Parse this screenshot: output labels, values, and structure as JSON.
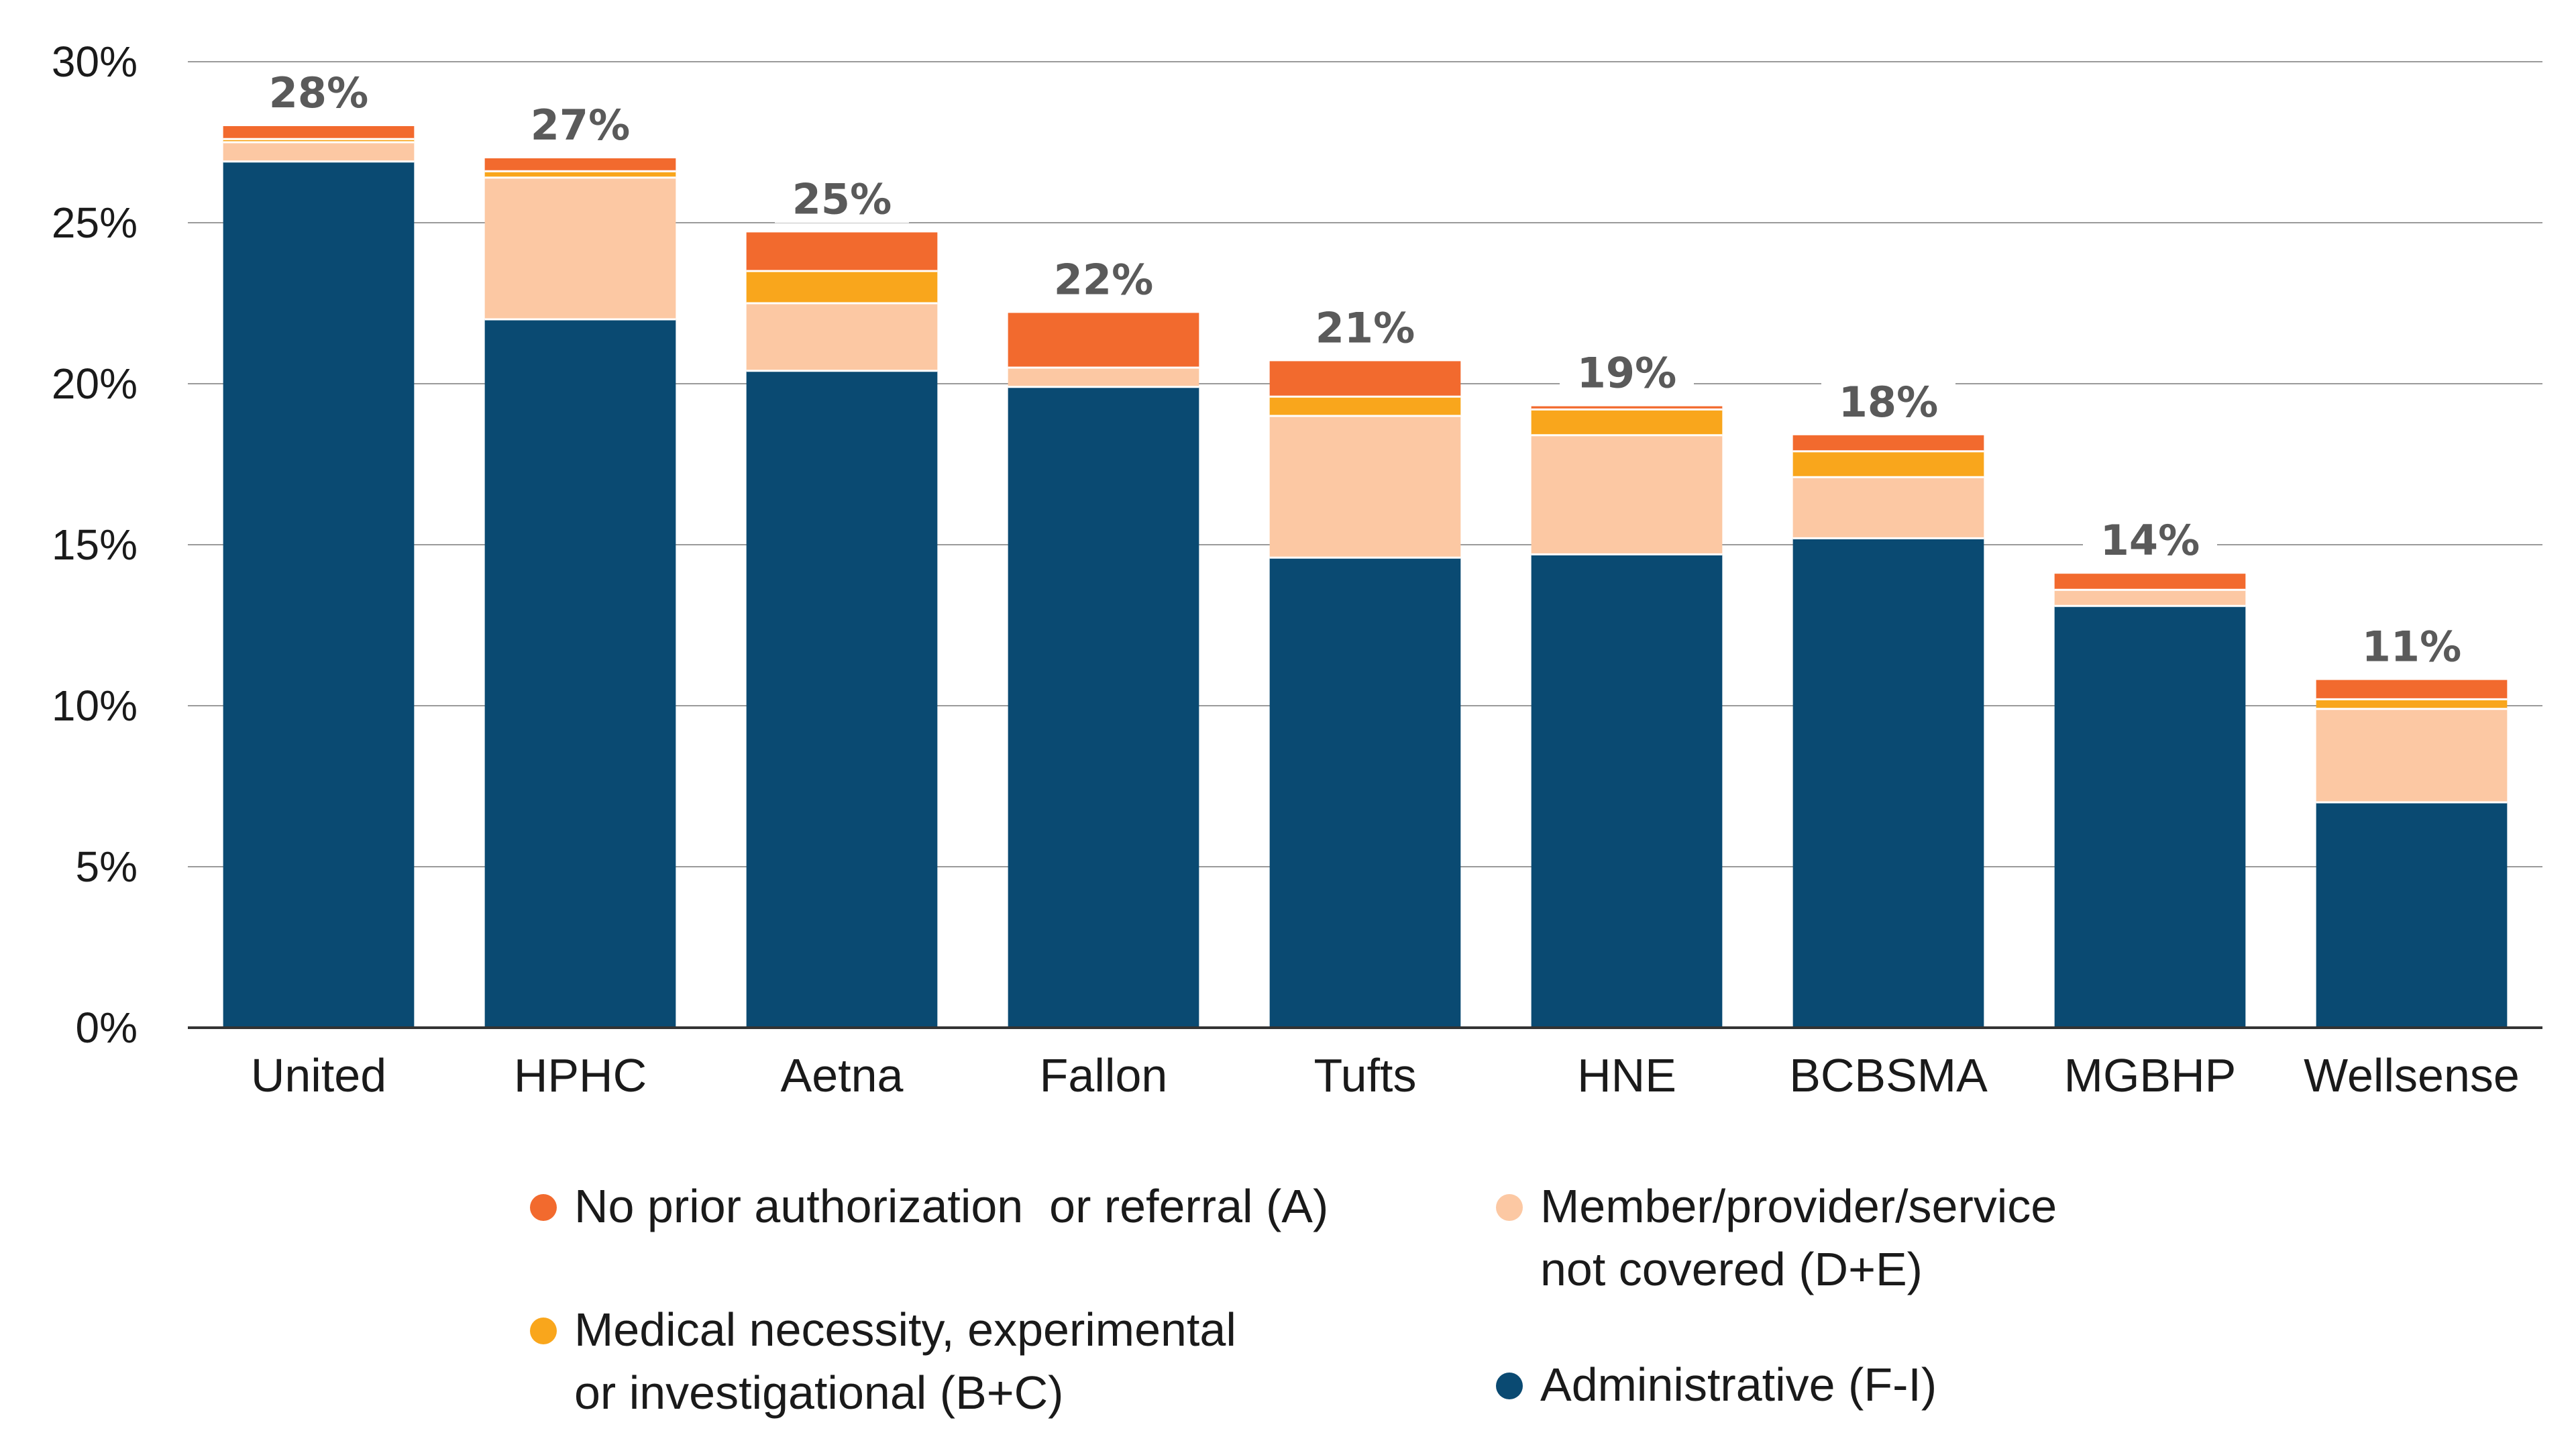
{
  "chart_data": {
    "type": "bar",
    "stacked": true,
    "title": "",
    "xlabel": "",
    "ylabel": "",
    "ylim": [
      0,
      30
    ],
    "y_ticks": [
      "0%",
      "5%",
      "10%",
      "15%",
      "20%",
      "25%",
      "30%"
    ],
    "grid": true,
    "legend_position": "bottom",
    "categories": [
      "United",
      "HPHC",
      "Aetna",
      "Fallon",
      "Tufts",
      "HNE",
      "BCBSMA",
      "MGBHP",
      "Wellsense"
    ],
    "totals_labels": [
      "28%",
      "27%",
      "25%",
      "22%",
      "21%",
      "19%",
      "18%",
      "14%",
      "11%"
    ],
    "series": [
      {
        "name": "Administrative (F-I)",
        "color": "#0a4a72",
        "values": [
          26.9,
          22.0,
          20.4,
          19.9,
          14.6,
          14.7,
          15.2,
          13.1,
          7.0
        ]
      },
      {
        "name": "Member/provider/service not covered (D+E)",
        "color": "#fcc8a3",
        "values": [
          0.6,
          4.4,
          2.1,
          0.6,
          4.4,
          3.7,
          1.9,
          0.5,
          2.9
        ]
      },
      {
        "name": "Medical necessity, experimental or investigational (B+C)",
        "color": "#f9a61c",
        "values": [
          0.1,
          0.2,
          1.0,
          0.0,
          0.6,
          0.8,
          0.8,
          0.0,
          0.3
        ]
      },
      {
        "name": "No prior authorization  or referral (A)",
        "color": "#f26a2e",
        "values": [
          0.4,
          0.4,
          1.2,
          1.7,
          1.1,
          0.1,
          0.5,
          0.5,
          0.6
        ]
      }
    ]
  },
  "legend": {
    "items": [
      {
        "lines": [
          "No prior authorization  or referral (A)"
        ],
        "color": "#f26a2e",
        "icon": "dot"
      },
      {
        "lines": [
          "Member/provider/service",
          "not covered (D+E)"
        ],
        "color": "#fcc8a3",
        "icon": "dot"
      },
      {
        "lines": [
          "Medical necessity, experimental",
          "or investigational (B+C)"
        ],
        "color": "#f9a61c",
        "icon": "dot"
      },
      {
        "lines": [
          "Administrative (F-I)"
        ],
        "color": "#0a4a72",
        "icon": "dot"
      }
    ]
  }
}
